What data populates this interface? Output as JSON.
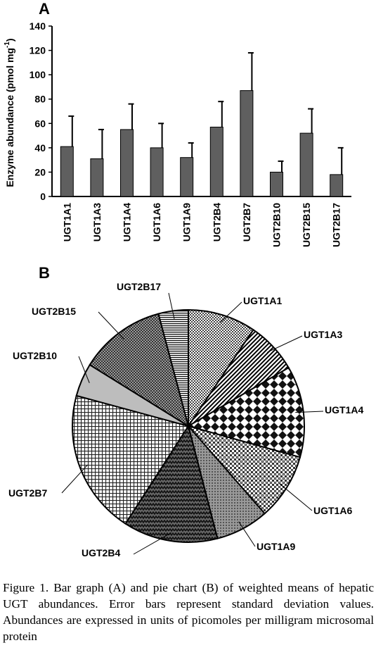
{
  "panel_a_label": "A",
  "panel_b_label": "B",
  "caption": "Figure 1. Bar graph (A) and pie chart (B) of weighted means of hepatic UGT abundances. Error bars represent standard deviation values. Abundances are expressed in units of picomoles per milligram microsomal protein",
  "colors": {
    "bar_fill": "#5f5f5f",
    "axis": "#000000",
    "pie_base": "#ffffff"
  },
  "chart_data": [
    {
      "type": "bar",
      "ylabel_main": "Enzyme abundance (pmol mg",
      "ylabel_sup": "-1",
      "ylabel_close": ")",
      "ylim": [
        0,
        140
      ],
      "yticks": [
        "0",
        "20",
        "40",
        "60",
        "80",
        "100",
        "120",
        "140"
      ],
      "yticks_values": [
        0,
        20,
        40,
        60,
        80,
        100,
        120,
        140
      ],
      "categories": [
        "UGT1A1",
        "UGT1A3",
        "UGT1A4",
        "UGT1A6",
        "UGT1A9",
        "UGT2B4",
        "UGT2B7",
        "UGT2B10",
        "UGT2B15",
        "UGT2B17"
      ],
      "values": [
        41,
        31,
        55,
        40,
        32,
        57,
        87,
        20,
        52,
        18
      ],
      "errors": [
        25,
        24,
        21,
        20,
        12,
        21,
        31,
        9,
        20,
        22
      ],
      "grid": false
    },
    {
      "type": "pie",
      "labels": [
        "UGT1A1",
        "UGT1A3",
        "UGT1A4",
        "UGT1A6",
        "UGT1A9",
        "UGT2B4",
        "UGT2B7",
        "UGT2B10",
        "UGT2B15",
        "UGT2B17"
      ],
      "values": [
        41,
        31,
        55,
        40,
        32,
        57,
        87,
        20,
        52,
        18
      ],
      "patterns": [
        "checker-small",
        "diagonal-stripes",
        "diamond-checker",
        "fine-checker",
        "dots",
        "zigzag",
        "grid-squares",
        "light-gray",
        "medium-checker",
        "horizontal-lines"
      ]
    }
  ]
}
